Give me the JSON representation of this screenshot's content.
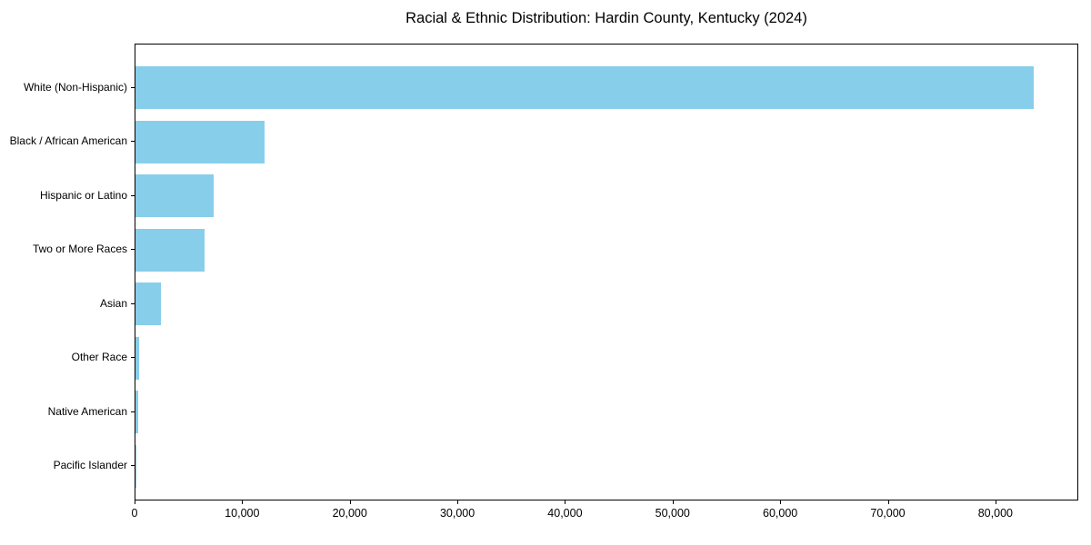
{
  "title": "Racial & Ethnic Distribution: Hardin County, Kentucky (2024)",
  "colors": {
    "bar": "#87CEEB",
    "spine": "#000000",
    "text": "#000000",
    "background": "#ffffff"
  },
  "chart_data": {
    "type": "bar",
    "orientation": "horizontal",
    "title": "Racial & Ethnic Distribution: Hardin County, Kentucky (2024)",
    "xlabel": "",
    "ylabel": "",
    "categories": [
      "White (Non-Hispanic)",
      "Black / African American",
      "Hispanic or Latino",
      "Two or More Races",
      "Asian",
      "Other Race",
      "Native American",
      "Pacific Islander"
    ],
    "values": [
      83500,
      12000,
      7300,
      6400,
      2400,
      350,
      230,
      80
    ],
    "xlim": [
      0,
      87700
    ],
    "xticks": [
      0,
      10000,
      20000,
      30000,
      40000,
      50000,
      60000,
      70000,
      80000
    ],
    "xtick_labels": [
      "0",
      "10,000",
      "20,000",
      "30,000",
      "40,000",
      "50,000",
      "60,000",
      "70,000",
      "80,000"
    ],
    "grid": false,
    "legend": null,
    "bar_color": "#87CEEB"
  }
}
